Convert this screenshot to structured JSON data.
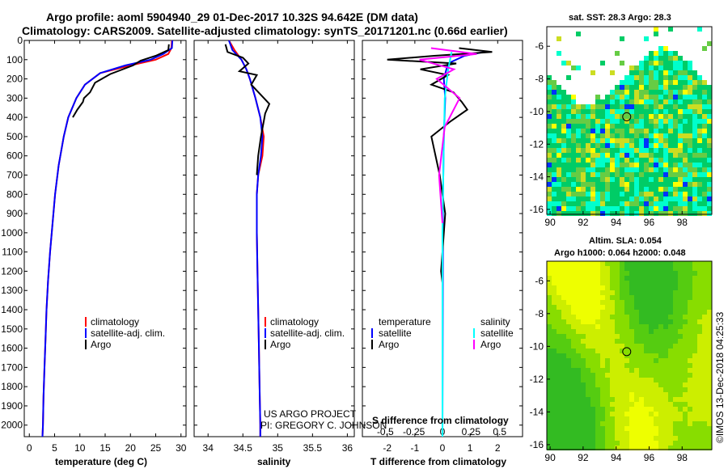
{
  "title_line1": "Argo profile: aoml 5904940_29 01-Dec-2017 10.32S 94.642E (DM data)",
  "title_line2": "Climatology: CARS2009. Satellite-adjusted climatology: synTS_20171201.nc (0.66d earlier)",
  "colors": {
    "climatology": "#ff0000",
    "satellite": "#0000ff",
    "argo": "#000000",
    "sat_t": "#00ffff",
    "sat_s_argo": "#ff00ff"
  },
  "depth_ticks": [
    "0",
    "100",
    "200",
    "300",
    "400",
    "500",
    "600",
    "700",
    "800",
    "900",
    "1000",
    "1100",
    "1200",
    "1300",
    "1400",
    "1500",
    "1600",
    "1700",
    "1800",
    "1900",
    "2000"
  ],
  "chart_data": [
    {
      "type": "line",
      "name": "temperature",
      "xlabel": "temperature (deg C)",
      "ylabel": "pressure",
      "xlim": [
        -1,
        31
      ],
      "ylim": [
        2060,
        0
      ],
      "xticks": [
        "0",
        "5",
        "10",
        "15",
        "20",
        "25",
        "30"
      ],
      "legend": [
        "climatology",
        "satellite-adj. clim.",
        "Argo"
      ],
      "series": [
        {
          "name": "climatology",
          "color": "#ff0000",
          "x": [
            28.2,
            28.1,
            27.5,
            25,
            20,
            14,
            11,
            9.3,
            7.7,
            6.8,
            5.8,
            5.1,
            4.6,
            4.1,
            3.7,
            3.4,
            3.2,
            3.0,
            2.8,
            2.7,
            2.6
          ],
          "y": [
            0,
            40,
            70,
            100,
            130,
            170,
            230,
            300,
            400,
            500,
            650,
            800,
            950,
            1100,
            1250,
            1400,
            1550,
            1700,
            1850,
            2000,
            2060
          ]
        },
        {
          "name": "satellite-adj. clim.",
          "color": "#0000ff",
          "x": [
            28.3,
            28.2,
            26.5,
            24,
            19,
            14,
            11,
            9.3,
            7.7,
            6.8,
            5.8,
            5.1,
            4.6,
            4.1,
            3.7,
            3.4,
            3.2,
            3.0,
            2.8,
            2.7,
            2.6
          ],
          "y": [
            0,
            40,
            70,
            100,
            130,
            170,
            230,
            300,
            400,
            500,
            650,
            800,
            950,
            1100,
            1250,
            1400,
            1550,
            1700,
            1850,
            2000,
            2060
          ]
        },
        {
          "name": "Argo",
          "color": "#000000",
          "x": [
            27.6,
            27.5,
            25,
            22,
            20.5,
            16,
            13,
            12,
            10.8,
            10.6,
            9.5,
            8.6
          ],
          "y": [
            20,
            50,
            80,
            105,
            130,
            175,
            220,
            270,
            300,
            320,
            360,
            400
          ]
        }
      ]
    },
    {
      "type": "line",
      "name": "salinity",
      "xlabel": "salinity",
      "ylabel": "pressure",
      "xlim": [
        33.8,
        36.1
      ],
      "ylim": [
        2060,
        0
      ],
      "xticks": [
        "34",
        "34.5",
        "35",
        "35.5",
        "36"
      ],
      "legend": [
        "climatology",
        "satellite-adj. clim.",
        "Argo"
      ],
      "series": [
        {
          "name": "climatology",
          "color": "#ff0000",
          "x": [
            34.3,
            34.38,
            34.48,
            34.55,
            34.6,
            34.68,
            34.75,
            34.8,
            34.78,
            34.72,
            34.7,
            34.7,
            34.71,
            34.72,
            34.73,
            34.74,
            34.75,
            34.75
          ],
          "y": [
            0,
            50,
            100,
            150,
            200,
            300,
            400,
            500,
            600,
            700,
            800,
            1000,
            1200,
            1400,
            1600,
            1800,
            2000,
            2060
          ]
        },
        {
          "name": "satellite-adj. clim.",
          "color": "#0000ff",
          "x": [
            34.3,
            34.35,
            34.48,
            34.55,
            34.6,
            34.68,
            34.75,
            34.78,
            34.76,
            34.72,
            34.7,
            34.7,
            34.71,
            34.72,
            34.73,
            34.74,
            34.75,
            34.75
          ],
          "y": [
            0,
            50,
            100,
            150,
            200,
            300,
            400,
            500,
            600,
            700,
            800,
            1000,
            1200,
            1400,
            1600,
            1800,
            2000,
            2060
          ]
        },
        {
          "name": "Argo",
          "color": "#000000",
          "x": [
            34.25,
            34.28,
            34.5,
            34.58,
            34.45,
            34.7,
            34.62,
            34.75,
            34.88,
            34.82,
            34.8,
            34.76,
            34.72,
            34.7
          ],
          "y": [
            20,
            60,
            90,
            120,
            160,
            180,
            230,
            280,
            330,
            380,
            420,
            500,
            600,
            700
          ]
        }
      ]
    },
    {
      "type": "line",
      "name": "difference",
      "xlabel": "T difference from climatology",
      "x2label": "S difference from climatology",
      "xlim": [
        -2.9,
        2.9
      ],
      "ylim": [
        2060,
        0
      ],
      "xticks": [
        "-2",
        "-1",
        "0",
        "1",
        "2"
      ],
      "x2ticks": [
        "-0.5",
        "-0.25",
        "0",
        "0.25",
        "0.5"
      ],
      "legend_left_title": "temperature",
      "legend_right_title": "salinity",
      "legend_left": [
        "satellite",
        "Argo"
      ],
      "legend_right": [
        "satellite",
        "Argo"
      ],
      "series": [
        {
          "name": "T satellite",
          "color": "#0000ff",
          "x": [
            1.5,
            0.8,
            0.2,
            0.05,
            0.1,
            0.05,
            0.02,
            0
          ],
          "y": [
            60,
            80,
            120,
            200,
            300,
            500,
            800,
            2060
          ]
        },
        {
          "name": "T Argo",
          "color": "#000000",
          "x": [
            0.6,
            1.8,
            -0.3,
            -2.0,
            0.5,
            -0.8,
            0.2,
            -0.4,
            0.4,
            0.7,
            0.9,
            0.3,
            -0.4,
            -0.1,
            0.1,
            -0.05,
            0
          ],
          "y": [
            40,
            60,
            80,
            100,
            120,
            150,
            180,
            230,
            270,
            320,
            360,
            420,
            500,
            700,
            900,
            1200,
            1260
          ]
        },
        {
          "name": "S satellite",
          "color": "#00ffff",
          "x": [
            0.08,
            0.05,
            0.02,
            0.01,
            0,
            0
          ],
          "y": [
            60,
            150,
            300,
            600,
            1000,
            2060
          ]
        },
        {
          "name": "S Argo",
          "color": "#ff00ff",
          "x": [
            -0.1,
            0.3,
            -0.2,
            0.1,
            -0.05,
            0.15,
            0.02,
            -0.03,
            0
          ],
          "y": [
            40,
            70,
            100,
            150,
            200,
            300,
            450,
            700,
            950
          ]
        }
      ]
    },
    {
      "type": "heatmap",
      "name": "sat-sst-map",
      "title": "sat. SST: 28.3 Argo: 28.3",
      "xlim": [
        89.8,
        99.8
      ],
      "ylim": [
        -16.3,
        -4.8
      ],
      "xticks": [
        "90",
        "92",
        "94",
        "96",
        "98"
      ],
      "yticks": [
        "-6",
        "-8",
        "-10",
        "-12",
        "-14",
        "-16"
      ],
      "argo_position": {
        "lon": 94.642,
        "lat": -10.32
      }
    },
    {
      "type": "heatmap",
      "name": "sla-map",
      "title": "Altim. SLA: 0.054",
      "subtitle": "Argo h1000: 0.064 h2000: 0.048",
      "xlim": [
        89.8,
        99.8
      ],
      "ylim": [
        -16.3,
        -4.8
      ],
      "xticks": [
        "90",
        "92",
        "94",
        "96",
        "98"
      ],
      "yticks": [
        "-6",
        "-8",
        "-10",
        "-12",
        "-14",
        "-16"
      ],
      "argo_position": {
        "lon": 94.642,
        "lat": -10.32
      }
    }
  ],
  "credit_line1": "US ARGO PROJECT",
  "credit_line2": "PI: GREGORY C. JOHNSON",
  "stamp": "©IMOS 13-Dec-2018 04:25:33"
}
